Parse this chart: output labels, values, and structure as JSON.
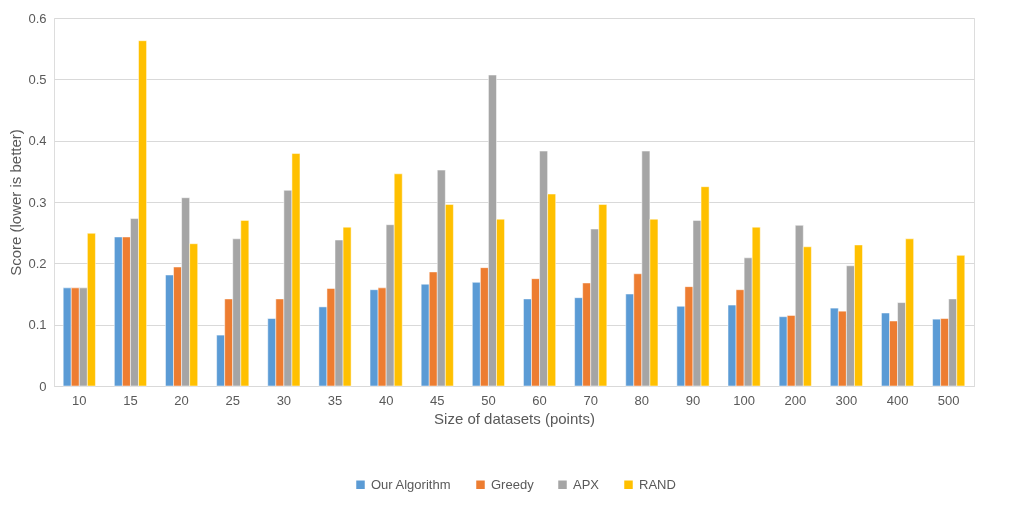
{
  "chart_data": {
    "type": "bar",
    "xlabel": "Size of datasets (points)",
    "ylabel": "Score (lower is better)",
    "categories": [
      "10",
      "15",
      "20",
      "25",
      "30",
      "35",
      "40",
      "45",
      "50",
      "60",
      "70",
      "80",
      "90",
      "100",
      "200",
      "300",
      "400",
      "500"
    ],
    "series": [
      {
        "name": "Our Algorithm",
        "color": "#5b9bd5",
        "values": [
          0.16,
          0.243,
          0.181,
          0.083,
          0.11,
          0.129,
          0.157,
          0.166,
          0.169,
          0.142,
          0.144,
          0.15,
          0.13,
          0.132,
          0.113,
          0.127,
          0.119,
          0.109
        ]
      },
      {
        "name": "Greedy",
        "color": "#ed7d31",
        "values": [
          0.16,
          0.243,
          0.194,
          0.142,
          0.142,
          0.159,
          0.16,
          0.186,
          0.193,
          0.175,
          0.168,
          0.183,
          0.162,
          0.157,
          0.115,
          0.122,
          0.106,
          0.11
        ]
      },
      {
        "name": "APX",
        "color": "#a5a5a5",
        "values": [
          0.16,
          0.273,
          0.307,
          0.24,
          0.319,
          0.238,
          0.263,
          0.352,
          0.507,
          0.383,
          0.256,
          0.383,
          0.27,
          0.209,
          0.262,
          0.196,
          0.136,
          0.142
        ]
      },
      {
        "name": "RAND",
        "color": "#ffc000",
        "values": [
          0.249,
          0.563,
          0.232,
          0.27,
          0.379,
          0.259,
          0.346,
          0.296,
          0.272,
          0.313,
          0.296,
          0.272,
          0.325,
          0.259,
          0.227,
          0.23,
          0.24,
          0.213
        ]
      }
    ],
    "ylim": [
      0,
      0.6
    ],
    "yticks": [
      0,
      0.1,
      0.2,
      0.3,
      0.4,
      0.5,
      0.6
    ],
    "grid": "y",
    "legend": "bottom"
  }
}
